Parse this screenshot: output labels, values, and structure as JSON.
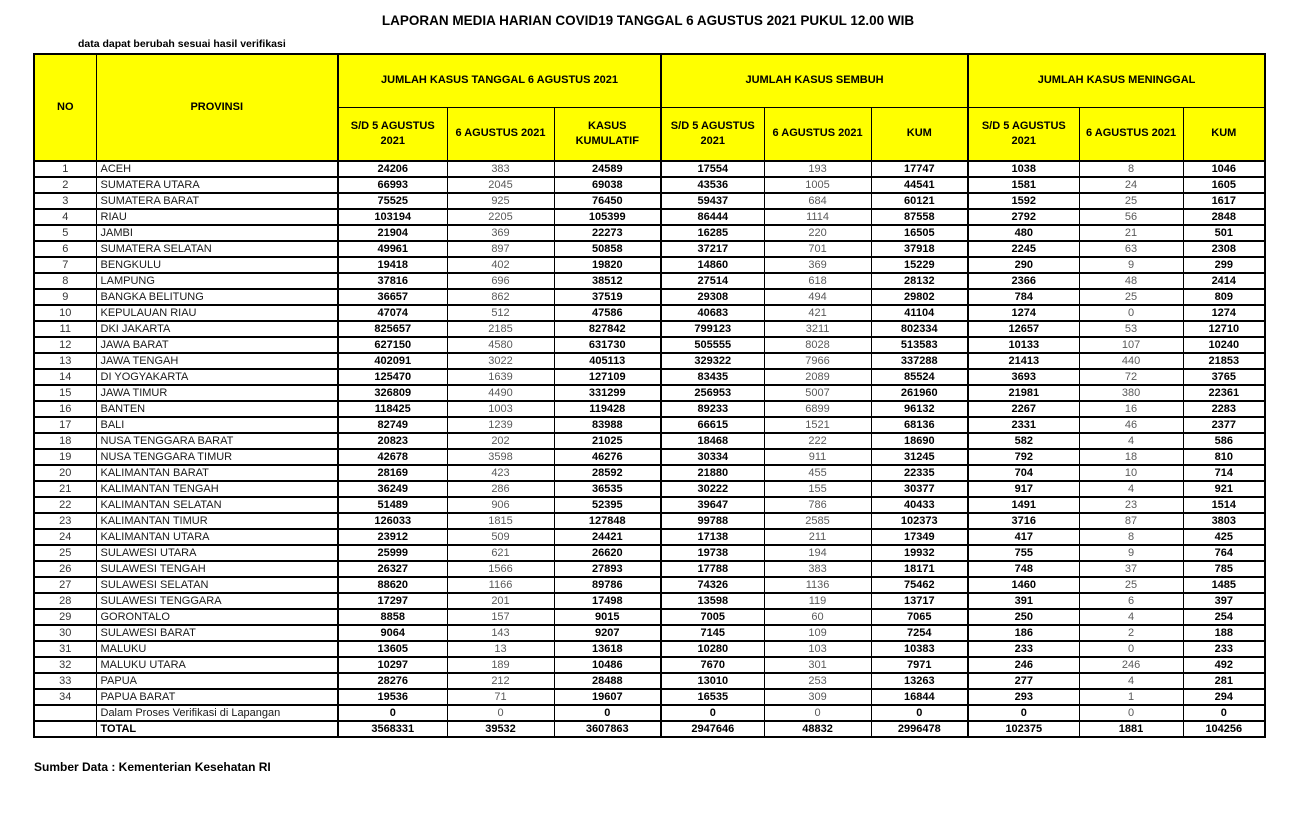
{
  "title": "LAPORAN MEDIA HARIAN COVID19 TANGGAL 6 AGUSTUS 2021 PUKUL 12.00 WIB",
  "note": "data dapat berubah sesuai hasil verifikasi",
  "source": "Sumber Data : Kementerian Kesehatan RI",
  "colors": {
    "header_bg": "#FFFF00",
    "border": "#000000",
    "daily_text": "#595959"
  },
  "table": {
    "header": {
      "no": "NO",
      "provinsi": "PROVINSI",
      "groups": [
        {
          "label": "JUMLAH KASUS TANGGAL 6 AGUSTUS 2021",
          "cols": [
            "S/D 5 AGUSTUS 2021",
            "6 AGUSTUS 2021",
            "KASUS KUMULATIF"
          ]
        },
        {
          "label": "JUMLAH KASUS SEMBUH",
          "cols": [
            "S/D 5 AGUSTUS 2021",
            "6 AGUSTUS 2021",
            "KUM"
          ]
        },
        {
          "label": "JUMLAH KASUS MENINGGAL",
          "cols": [
            "S/D 5 AGUSTUS 2021",
            "6 AGUSTUS 2021",
            "KUM"
          ]
        }
      ]
    },
    "rows": [
      {
        "no": "1",
        "provinsi": "ACEH",
        "values": [
          24206,
          383,
          24589,
          17554,
          193,
          17747,
          1038,
          8,
          1046
        ]
      },
      {
        "no": "2",
        "provinsi": "SUMATERA UTARA",
        "values": [
          66993,
          2045,
          69038,
          43536,
          1005,
          44541,
          1581,
          24,
          1605
        ]
      },
      {
        "no": "3",
        "provinsi": "SUMATERA BARAT",
        "values": [
          75525,
          925,
          76450,
          59437,
          684,
          60121,
          1592,
          25,
          1617
        ]
      },
      {
        "no": "4",
        "provinsi": "RIAU",
        "values": [
          103194,
          2205,
          105399,
          86444,
          1114,
          87558,
          2792,
          56,
          2848
        ]
      },
      {
        "no": "5",
        "provinsi": "JAMBI",
        "values": [
          21904,
          369,
          22273,
          16285,
          220,
          16505,
          480,
          21,
          501
        ]
      },
      {
        "no": "6",
        "provinsi": "SUMATERA SELATAN",
        "values": [
          49961,
          897,
          50858,
          37217,
          701,
          37918,
          2245,
          63,
          2308
        ]
      },
      {
        "no": "7",
        "provinsi": "BENGKULU",
        "values": [
          19418,
          402,
          19820,
          14860,
          369,
          15229,
          290,
          9,
          299
        ]
      },
      {
        "no": "8",
        "provinsi": "LAMPUNG",
        "values": [
          37816,
          696,
          38512,
          27514,
          618,
          28132,
          2366,
          48,
          2414
        ]
      },
      {
        "no": "9",
        "provinsi": "BANGKA BELITUNG",
        "values": [
          36657,
          862,
          37519,
          29308,
          494,
          29802,
          784,
          25,
          809
        ]
      },
      {
        "no": "10",
        "provinsi": "KEPULAUAN RIAU",
        "values": [
          47074,
          512,
          47586,
          40683,
          421,
          41104,
          1274,
          0,
          1274
        ]
      },
      {
        "no": "11",
        "provinsi": "DKI JAKARTA",
        "values": [
          825657,
          2185,
          827842,
          799123,
          3211,
          802334,
          12657,
          53,
          12710
        ]
      },
      {
        "no": "12",
        "provinsi": "JAWA BARAT",
        "values": [
          627150,
          4580,
          631730,
          505555,
          8028,
          513583,
          10133,
          107,
          10240
        ]
      },
      {
        "no": "13",
        "provinsi": "JAWA TENGAH",
        "values": [
          402091,
          3022,
          405113,
          329322,
          7966,
          337288,
          21413,
          440,
          21853
        ]
      },
      {
        "no": "14",
        "provinsi": "DI YOGYAKARTA",
        "values": [
          125470,
          1639,
          127109,
          83435,
          2089,
          85524,
          3693,
          72,
          3765
        ]
      },
      {
        "no": "15",
        "provinsi": "JAWA TIMUR",
        "values": [
          326809,
          4490,
          331299,
          256953,
          5007,
          261960,
          21981,
          380,
          22361
        ]
      },
      {
        "no": "16",
        "provinsi": "BANTEN",
        "values": [
          118425,
          1003,
          119428,
          89233,
          6899,
          96132,
          2267,
          16,
          2283
        ]
      },
      {
        "no": "17",
        "provinsi": "BALI",
        "values": [
          82749,
          1239,
          83988,
          66615,
          1521,
          68136,
          2331,
          46,
          2377
        ]
      },
      {
        "no": "18",
        "provinsi": "NUSA TENGGARA BARAT",
        "values": [
          20823,
          202,
          21025,
          18468,
          222,
          18690,
          582,
          4,
          586
        ]
      },
      {
        "no": "19",
        "provinsi": "NUSA TENGGARA TIMUR",
        "values": [
          42678,
          3598,
          46276,
          30334,
          911,
          31245,
          792,
          18,
          810
        ]
      },
      {
        "no": "20",
        "provinsi": "KALIMANTAN BARAT",
        "values": [
          28169,
          423,
          28592,
          21880,
          455,
          22335,
          704,
          10,
          714
        ]
      },
      {
        "no": "21",
        "provinsi": "KALIMANTAN TENGAH",
        "values": [
          36249,
          286,
          36535,
          30222,
          155,
          30377,
          917,
          4,
          921
        ]
      },
      {
        "no": "22",
        "provinsi": "KALIMANTAN SELATAN",
        "values": [
          51489,
          906,
          52395,
          39647,
          786,
          40433,
          1491,
          23,
          1514
        ]
      },
      {
        "no": "23",
        "provinsi": "KALIMANTAN TIMUR",
        "values": [
          126033,
          1815,
          127848,
          99788,
          2585,
          102373,
          3716,
          87,
          3803
        ]
      },
      {
        "no": "24",
        "provinsi": "KALIMANTAN UTARA",
        "values": [
          23912,
          509,
          24421,
          17138,
          211,
          17349,
          417,
          8,
          425
        ]
      },
      {
        "no": "25",
        "provinsi": "SULAWESI UTARA",
        "values": [
          25999,
          621,
          26620,
          19738,
          194,
          19932,
          755,
          9,
          764
        ]
      },
      {
        "no": "26",
        "provinsi": "SULAWESI TENGAH",
        "values": [
          26327,
          1566,
          27893,
          17788,
          383,
          18171,
          748,
          37,
          785
        ]
      },
      {
        "no": "27",
        "provinsi": "SULAWESI SELATAN",
        "values": [
          88620,
          1166,
          89786,
          74326,
          1136,
          75462,
          1460,
          25,
          1485
        ]
      },
      {
        "no": "28",
        "provinsi": "SULAWESI TENGGARA",
        "values": [
          17297,
          201,
          17498,
          13598,
          119,
          13717,
          391,
          6,
          397
        ]
      },
      {
        "no": "29",
        "provinsi": "GORONTALO",
        "values": [
          8858,
          157,
          9015,
          7005,
          60,
          7065,
          250,
          4,
          254
        ]
      },
      {
        "no": "30",
        "provinsi": "SULAWESI BARAT",
        "values": [
          9064,
          143,
          9207,
          7145,
          109,
          7254,
          186,
          2,
          188
        ]
      },
      {
        "no": "31",
        "provinsi": "MALUKU",
        "values": [
          13605,
          13,
          13618,
          10280,
          103,
          10383,
          233,
          0,
          233
        ]
      },
      {
        "no": "32",
        "provinsi": "MALUKU UTARA",
        "values": [
          10297,
          189,
          10486,
          7670,
          301,
          7971,
          246,
          246,
          492
        ]
      },
      {
        "no": "33",
        "provinsi": "PAPUA",
        "values": [
          28276,
          212,
          28488,
          13010,
          253,
          13263,
          277,
          4,
          281
        ]
      },
      {
        "no": "34",
        "provinsi": "PAPUA BARAT",
        "values": [
          19536,
          71,
          19607,
          16535,
          309,
          16844,
          293,
          1,
          294
        ]
      }
    ],
    "verification_row": {
      "no": "",
      "provinsi": "Dalam Proses Verifikasi di Lapangan",
      "values": [
        0,
        0,
        0,
        0,
        0,
        0,
        0,
        0,
        0
      ]
    },
    "total_row": {
      "no": "",
      "provinsi": "TOTAL",
      "values": [
        3568331,
        39532,
        3607863,
        2947646,
        48832,
        2996478,
        102375,
        1881,
        104256
      ]
    }
  }
}
